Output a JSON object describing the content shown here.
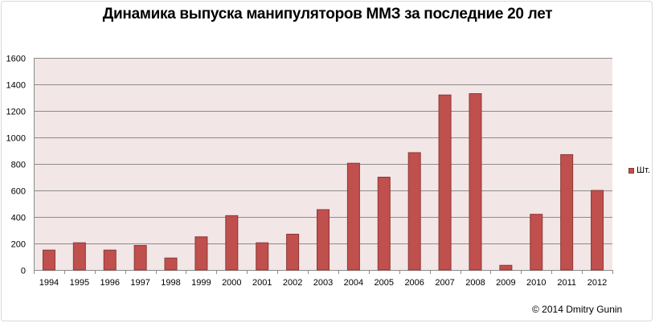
{
  "chart_data": {
    "type": "bar",
    "title": "Динамика выпуска манипуляторов ММЗ за последние 20 лет",
    "categories": [
      "1994",
      "1995",
      "1996",
      "1997",
      "1998",
      "1999",
      "2000",
      "2001",
      "2002",
      "2003",
      "2004",
      "2005",
      "2006",
      "2007",
      "2008",
      "2009",
      "2010",
      "2011",
      "2012"
    ],
    "series": [
      {
        "name": "Шт.",
        "values": [
          150,
          205,
          150,
          185,
          90,
          250,
          410,
          205,
          270,
          455,
          805,
          700,
          885,
          1320,
          1330,
          35,
          420,
          870,
          600
        ]
      }
    ],
    "yticks": [
      "0",
      "200",
      "400",
      "600",
      "800",
      "1000",
      "1200",
      "1400",
      "1600"
    ],
    "ylim": [
      0,
      1600
    ],
    "xlabel": "",
    "ylabel": "",
    "grid": true,
    "legend": "right",
    "colors": {
      "bar": "#c0504d",
      "bar_border": "#8c3836",
      "plot_background": "#f2e6e6",
      "grid": "#8c8c8c"
    }
  },
  "footer": {
    "copyright": "© 2014 Dmitry Gunin"
  }
}
